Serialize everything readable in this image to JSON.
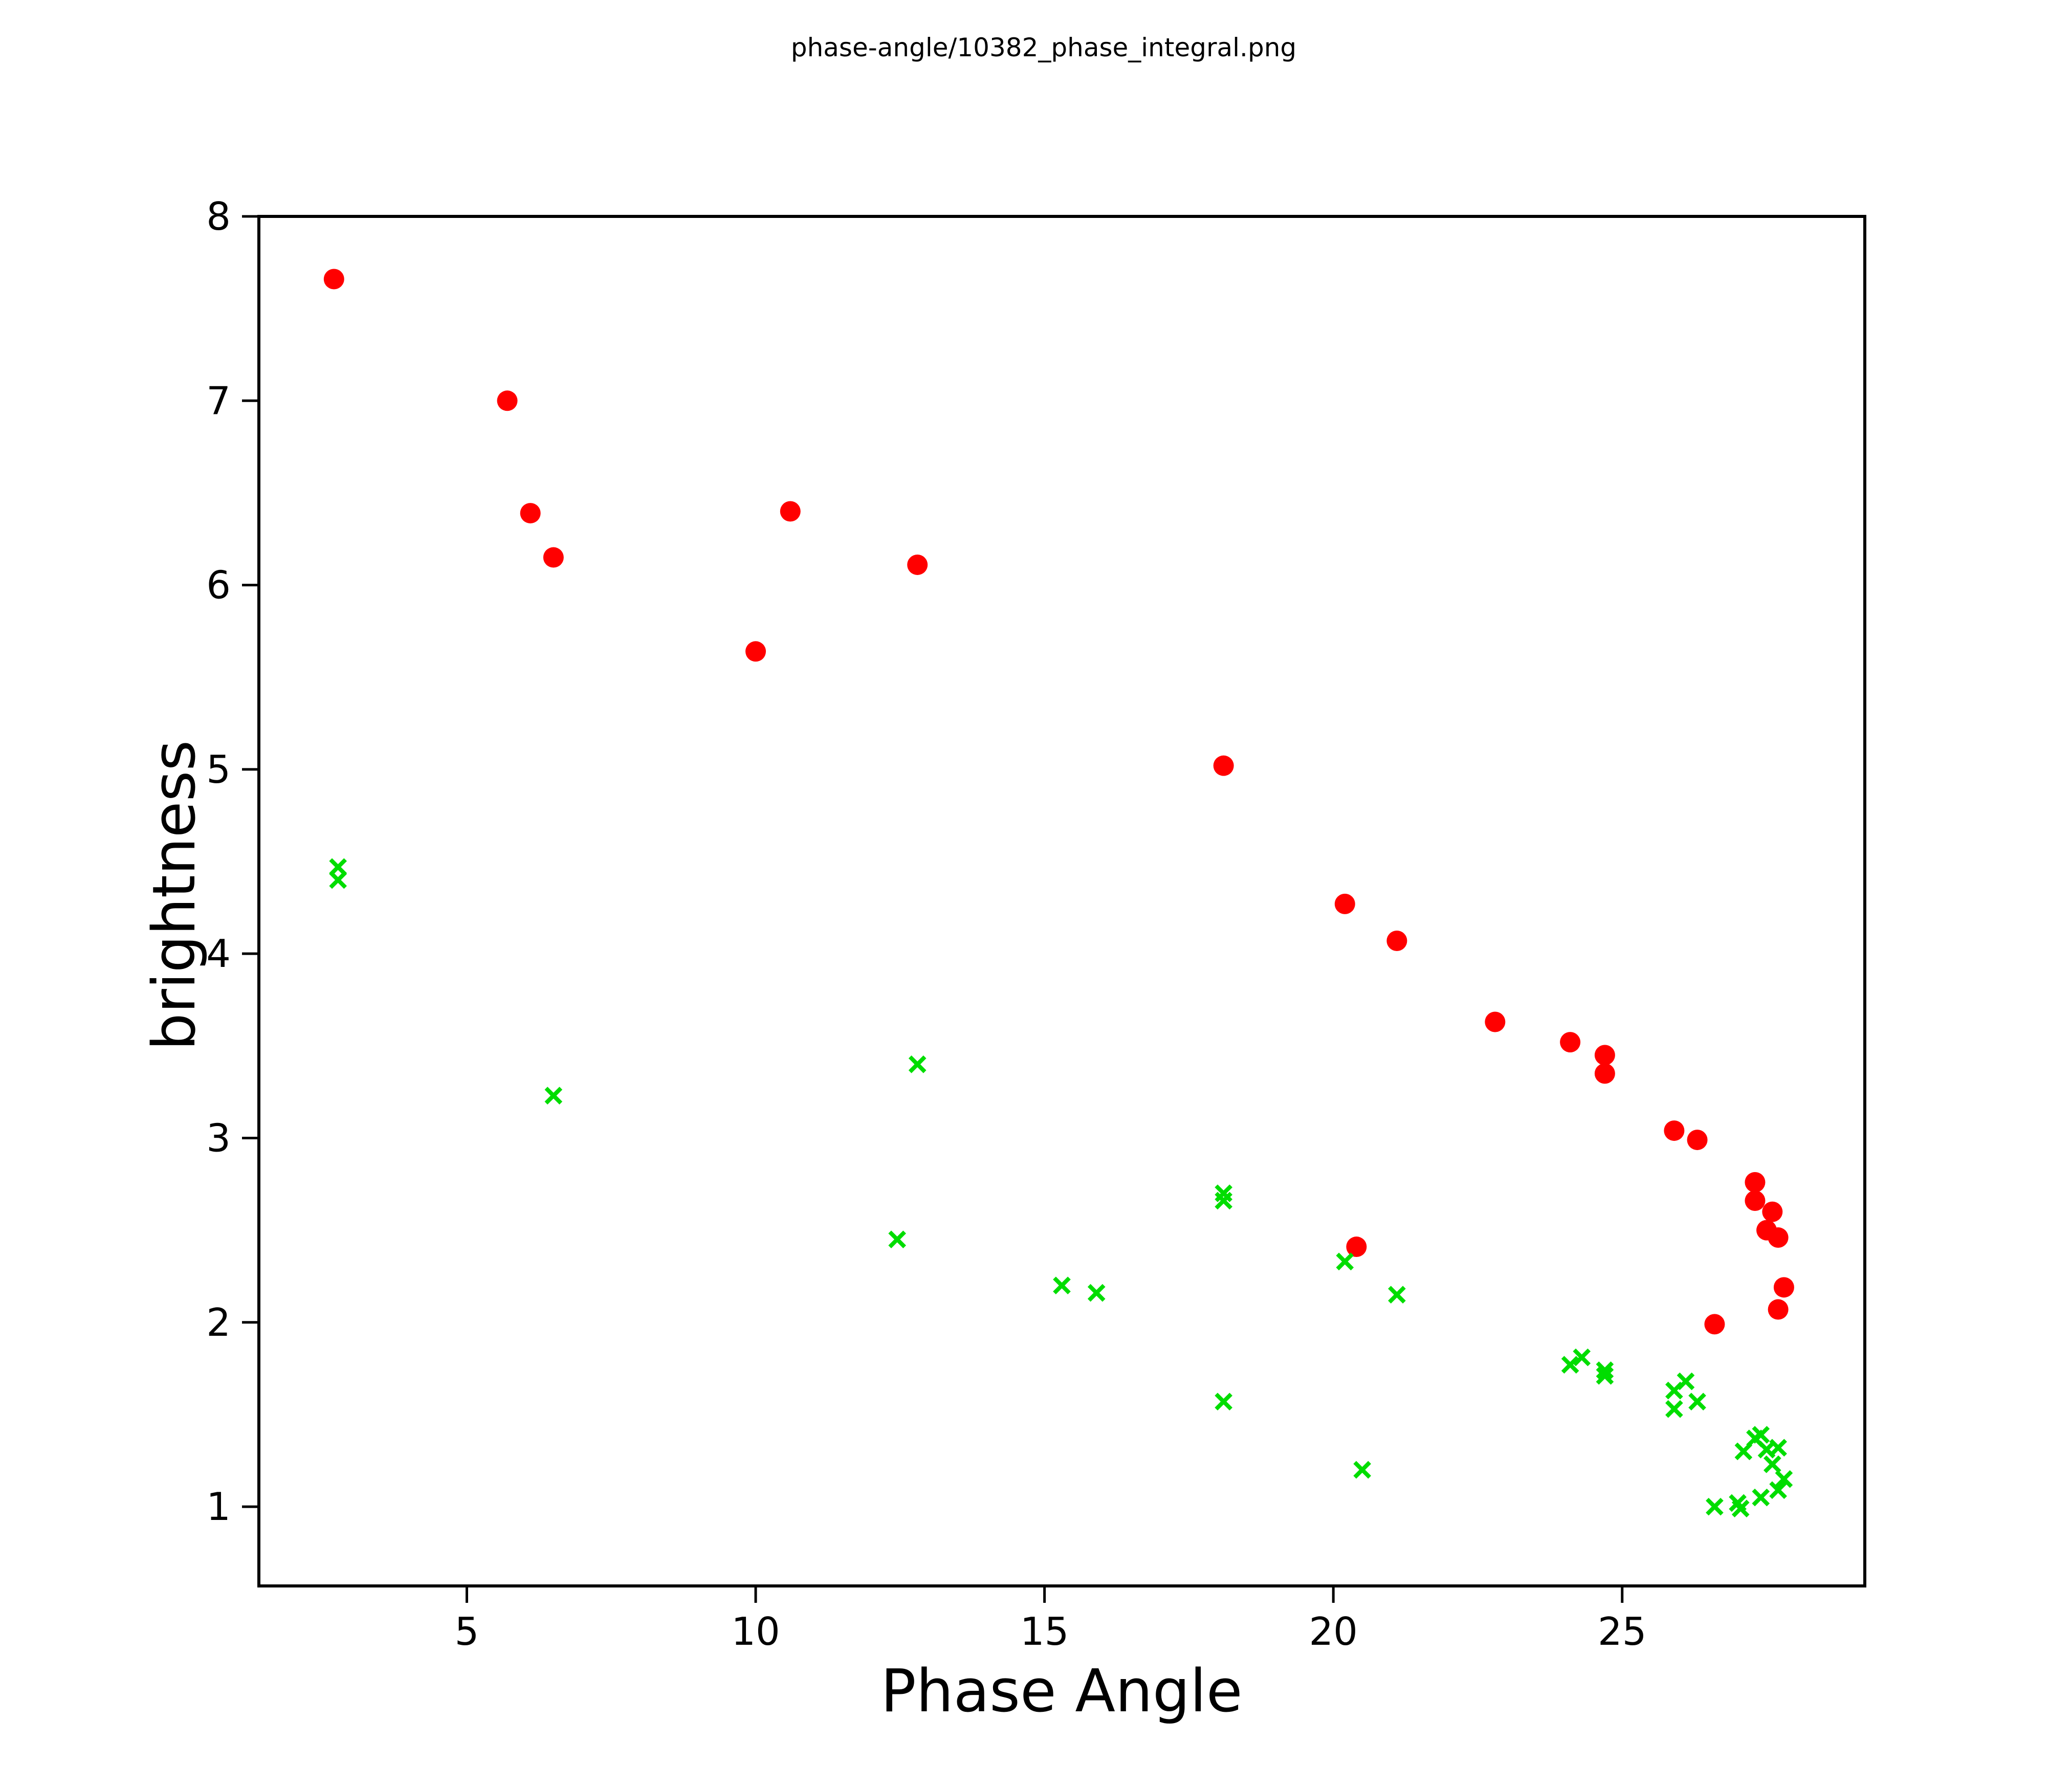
{
  "page_title": "phase-angle/10382_phase_integral.png",
  "colors": {
    "background": "#ffffff",
    "axis": "#000000",
    "red_series": "#ff0000",
    "green_series": "#00dd00"
  },
  "chart_data": {
    "type": "scatter",
    "title": "phase-angle/10382_phase_integral.png",
    "xlabel": "Phase Angle",
    "ylabel": "brightness",
    "xlim": [
      1.4,
      29.2
    ],
    "ylim": [
      0.57,
      8.0
    ],
    "x_ticks": [
      5,
      10,
      15,
      20,
      25
    ],
    "y_ticks": [
      1,
      2,
      3,
      4,
      5,
      6,
      7,
      8
    ],
    "grid": false,
    "legend_position": "none",
    "series": [
      {
        "name": "red-circles",
        "marker": "circle",
        "color": "#ff0000",
        "points": [
          [
            2.7,
            7.66
          ],
          [
            5.7,
            7.0
          ],
          [
            6.1,
            6.39
          ],
          [
            6.5,
            6.15
          ],
          [
            10.0,
            5.64
          ],
          [
            10.6,
            6.4
          ],
          [
            12.8,
            6.11
          ],
          [
            18.1,
            5.02
          ],
          [
            20.2,
            4.27
          ],
          [
            20.4,
            2.41
          ],
          [
            21.1,
            4.07
          ],
          [
            22.8,
            3.63
          ],
          [
            24.1,
            3.52
          ],
          [
            24.7,
            3.45
          ],
          [
            24.7,
            3.35
          ],
          [
            25.9,
            3.04
          ],
          [
            26.3,
            2.99
          ],
          [
            26.6,
            1.99
          ],
          [
            27.3,
            2.76
          ],
          [
            27.3,
            2.66
          ],
          [
            27.5,
            2.5
          ],
          [
            27.6,
            2.6
          ],
          [
            27.7,
            2.46
          ],
          [
            27.7,
            2.07
          ],
          [
            27.8,
            2.19
          ]
        ]
      },
      {
        "name": "green-crosses",
        "marker": "x",
        "color": "#00dd00",
        "points": [
          [
            2.77,
            4.47
          ],
          [
            2.77,
            4.4
          ],
          [
            6.5,
            3.23
          ],
          [
            12.45,
            2.45
          ],
          [
            12.8,
            3.4
          ],
          [
            15.3,
            2.2
          ],
          [
            15.9,
            2.16
          ],
          [
            18.1,
            2.7
          ],
          [
            18.1,
            2.66
          ],
          [
            18.1,
            1.57
          ],
          [
            20.2,
            2.33
          ],
          [
            20.5,
            1.2
          ],
          [
            21.1,
            2.15
          ],
          [
            24.1,
            1.77
          ],
          [
            24.3,
            1.81
          ],
          [
            24.7,
            1.74
          ],
          [
            24.7,
            1.71
          ],
          [
            25.9,
            1.63
          ],
          [
            25.9,
            1.53
          ],
          [
            26.1,
            1.68
          ],
          [
            26.3,
            1.57
          ],
          [
            26.6,
            1.0
          ],
          [
            27.0,
            1.02
          ],
          [
            27.05,
            0.99
          ],
          [
            27.1,
            1.3
          ],
          [
            27.3,
            1.37
          ],
          [
            27.4,
            1.39
          ],
          [
            27.4,
            1.05
          ],
          [
            27.5,
            1.31
          ],
          [
            27.6,
            1.23
          ],
          [
            27.7,
            1.32
          ],
          [
            27.7,
            1.09
          ],
          [
            27.8,
            1.15
          ]
        ]
      }
    ]
  }
}
